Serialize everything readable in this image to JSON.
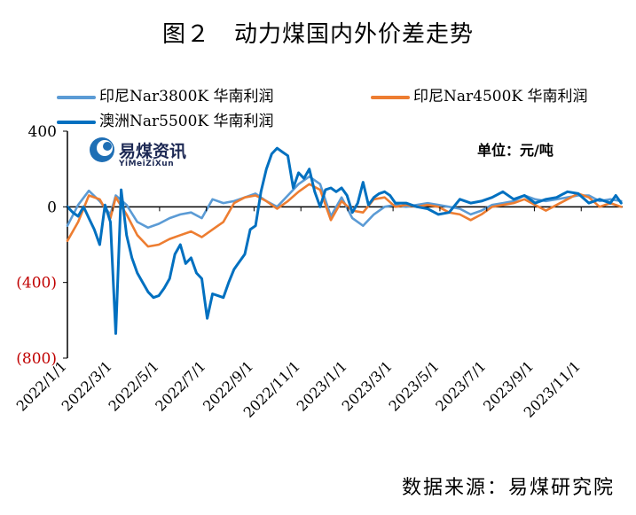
{
  "title": "图２　动力煤国内外价差走势",
  "source": "数据来源：易煤研究院",
  "logo": {
    "name": "易煤资讯",
    "subtitle": "YiMeiZiXun",
    "icon": "yimei-logo-icon"
  },
  "unit": "单位：元/吨",
  "chart_data": {
    "type": "line",
    "ylim": [
      -800,
      400
    ],
    "yticks": [
      400,
      0,
      -400,
      -800
    ],
    "ytick_labels": [
      "400",
      "0",
      "(400)",
      "(800)"
    ],
    "ytick_colors": [
      "#000000",
      "#000000",
      "#c00000",
      "#c00000"
    ],
    "xlim": [
      "2022-01-01",
      "2023-12-25"
    ],
    "xticks": [
      "2022-01-01",
      "2022-03-01",
      "2022-05-01",
      "2022-07-01",
      "2022-09-01",
      "2022-11-01",
      "2023-01-01",
      "2023-03-01",
      "2023-05-01",
      "2023-07-01",
      "2023-09-01",
      "2023-11-01"
    ],
    "xtick_labels": [
      "2022/1/1",
      "2022/3/1",
      "2022/5/1",
      "2022/7/1",
      "2022/9/1",
      "2022/11/1",
      "2023/1/1",
      "2023/3/1",
      "2023/5/1",
      "2023/7/1",
      "2023/9/1",
      "2023/11/1"
    ],
    "grid": false,
    "legend_position": "top",
    "series": [
      {
        "name": "印尼Nar3800K 华南利润",
        "color": "#5b9bd5",
        "x": [
          "2022-01-01",
          "2022-01-15",
          "2022-01-29",
          "2022-02-12",
          "2022-02-26",
          "2022-03-05",
          "2022-03-19",
          "2022-04-02",
          "2022-04-16",
          "2022-04-30",
          "2022-05-14",
          "2022-05-28",
          "2022-06-11",
          "2022-06-25",
          "2022-07-09",
          "2022-07-23",
          "2022-08-06",
          "2022-08-20",
          "2022-09-03",
          "2022-09-17",
          "2022-10-01",
          "2022-10-15",
          "2022-10-29",
          "2022-11-12",
          "2022-11-26",
          "2022-12-10",
          "2022-12-24",
          "2023-01-07",
          "2023-01-21",
          "2023-02-04",
          "2023-02-18",
          "2023-03-04",
          "2023-03-18",
          "2023-04-01",
          "2023-04-15",
          "2023-04-29",
          "2023-05-13",
          "2023-05-27",
          "2023-06-10",
          "2023-06-24",
          "2023-07-08",
          "2023-07-22",
          "2023-08-05",
          "2023-08-19",
          "2023-09-02",
          "2023-09-16",
          "2023-09-30",
          "2023-10-14",
          "2023-10-28",
          "2023-11-11",
          "2023-11-25",
          "2023-12-09",
          "2023-12-23"
        ],
        "values": [
          -100,
          10,
          85,
          30,
          -40,
          60,
          10,
          -80,
          -110,
          -90,
          -60,
          -40,
          -30,
          -60,
          40,
          20,
          30,
          50,
          70,
          30,
          0,
          60,
          120,
          160,
          120,
          -50,
          50,
          -60,
          -100,
          -40,
          0,
          10,
          0,
          10,
          20,
          10,
          0,
          -10,
          -40,
          -20,
          10,
          20,
          30,
          60,
          40,
          30,
          40,
          50,
          60,
          60,
          30,
          40,
          30
        ]
      },
      {
        "name": "印尼Nar4500K 华南利润",
        "color": "#ed7d31",
        "x": [
          "2022-01-01",
          "2022-01-15",
          "2022-01-29",
          "2022-02-12",
          "2022-02-26",
          "2022-03-05",
          "2022-03-19",
          "2022-04-02",
          "2022-04-16",
          "2022-04-30",
          "2022-05-14",
          "2022-05-28",
          "2022-06-11",
          "2022-06-25",
          "2022-07-09",
          "2022-07-23",
          "2022-08-06",
          "2022-08-20",
          "2022-09-03",
          "2022-09-17",
          "2022-10-01",
          "2022-10-15",
          "2022-10-29",
          "2022-11-12",
          "2022-11-26",
          "2022-12-10",
          "2022-12-24",
          "2023-01-07",
          "2023-01-21",
          "2023-02-04",
          "2023-02-18",
          "2023-03-04",
          "2023-03-18",
          "2023-04-01",
          "2023-04-15",
          "2023-04-29",
          "2023-05-13",
          "2023-05-27",
          "2023-06-10",
          "2023-06-24",
          "2023-07-08",
          "2023-07-22",
          "2023-08-05",
          "2023-08-19",
          "2023-09-02",
          "2023-09-16",
          "2023-09-30",
          "2023-10-14",
          "2023-10-28",
          "2023-11-11",
          "2023-11-25",
          "2023-12-09",
          "2023-12-23"
        ],
        "values": [
          -180,
          -80,
          60,
          40,
          -60,
          50,
          -40,
          -150,
          -210,
          -200,
          -170,
          -150,
          -130,
          -160,
          -120,
          -80,
          20,
          50,
          60,
          30,
          -10,
          30,
          80,
          120,
          90,
          -70,
          30,
          -20,
          -30,
          40,
          50,
          0,
          10,
          0,
          10,
          0,
          -30,
          -40,
          -70,
          -40,
          0,
          10,
          20,
          40,
          10,
          -20,
          10,
          40,
          70,
          50,
          0,
          20,
          0
        ]
      },
      {
        "name": "澳洲Nar5500K 华南利润",
        "color": "#0070c0",
        "x": [
          "2022-01-01",
          "2022-01-08",
          "2022-01-15",
          "2022-01-22",
          "2022-01-29",
          "2022-02-05",
          "2022-02-12",
          "2022-02-19",
          "2022-02-26",
          "2022-03-05",
          "2022-03-12",
          "2022-03-19",
          "2022-03-26",
          "2022-04-02",
          "2022-04-09",
          "2022-04-16",
          "2022-04-23",
          "2022-04-30",
          "2022-05-07",
          "2022-05-14",
          "2022-05-21",
          "2022-05-28",
          "2022-06-04",
          "2022-06-11",
          "2022-06-18",
          "2022-06-25",
          "2022-07-02",
          "2022-07-09",
          "2022-07-16",
          "2022-07-23",
          "2022-07-30",
          "2022-08-06",
          "2022-08-13",
          "2022-08-20",
          "2022-08-27",
          "2022-09-03",
          "2022-09-10",
          "2022-09-17",
          "2022-09-24",
          "2022-10-01",
          "2022-10-08",
          "2022-10-15",
          "2022-10-22",
          "2022-10-29",
          "2022-11-05",
          "2022-11-12",
          "2022-11-19",
          "2022-11-26",
          "2022-12-03",
          "2022-12-10",
          "2022-12-17",
          "2022-12-24",
          "2022-12-31",
          "2023-01-07",
          "2023-01-14",
          "2023-01-21",
          "2023-01-28",
          "2023-02-04",
          "2023-02-11",
          "2023-02-18",
          "2023-02-25",
          "2023-03-04",
          "2023-03-11",
          "2023-03-18",
          "2023-03-25",
          "2023-04-01",
          "2023-04-15",
          "2023-04-29",
          "2023-05-13",
          "2023-05-27",
          "2023-06-10",
          "2023-06-24",
          "2023-07-08",
          "2023-07-22",
          "2023-08-05",
          "2023-08-19",
          "2023-09-02",
          "2023-09-16",
          "2023-09-30",
          "2023-10-14",
          "2023-10-28",
          "2023-11-11",
          "2023-11-25",
          "2023-12-09",
          "2023-12-16",
          "2023-12-23"
        ],
        "values": [
          0,
          -30,
          -50,
          0,
          -60,
          -120,
          -200,
          10,
          -80,
          -670,
          90,
          -150,
          -270,
          -350,
          -400,
          -450,
          -480,
          -470,
          -430,
          -380,
          -250,
          -200,
          -300,
          -270,
          -350,
          -380,
          -590,
          -460,
          -470,
          -480,
          -400,
          -330,
          -290,
          -250,
          -120,
          -100,
          80,
          200,
          280,
          310,
          290,
          270,
          100,
          180,
          150,
          200,
          80,
          0,
          90,
          100,
          80,
          100,
          60,
          -30,
          20,
          130,
          10,
          50,
          70,
          80,
          60,
          20,
          20,
          20,
          10,
          0,
          -10,
          -40,
          -30,
          40,
          20,
          30,
          50,
          80,
          40,
          60,
          20,
          40,
          50,
          80,
          70,
          20,
          40,
          20,
          60,
          20
        ]
      }
    ]
  }
}
